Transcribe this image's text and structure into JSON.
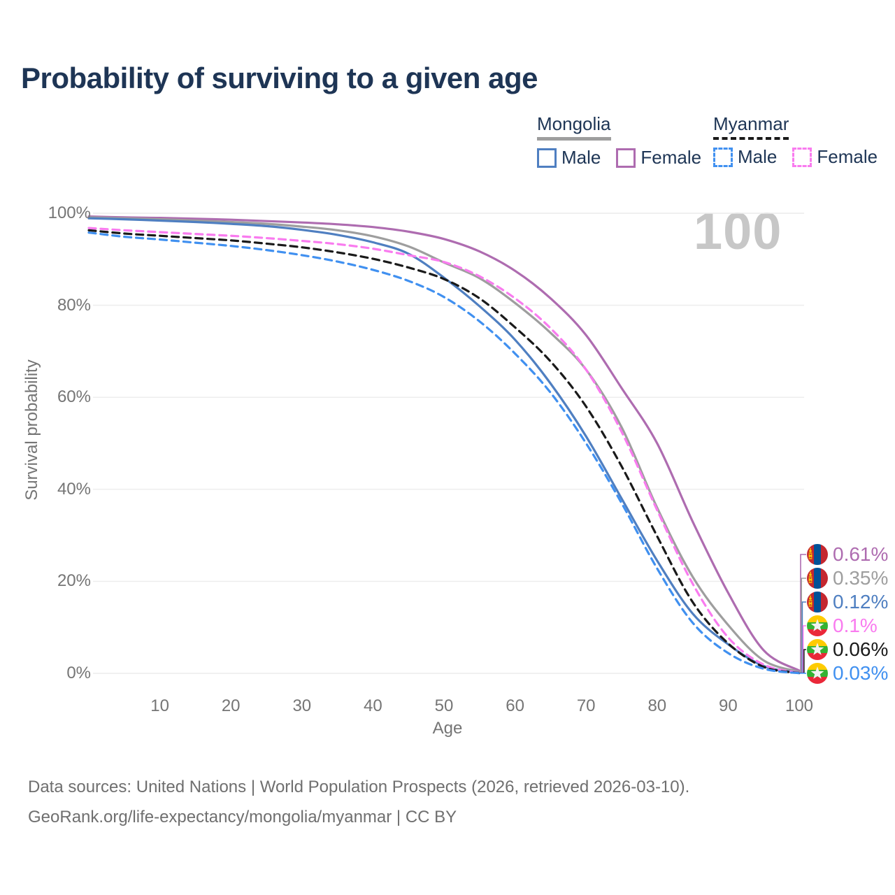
{
  "title": "Probability of surviving to a given age",
  "watermark_age": "100",
  "legend": {
    "groups": [
      {
        "label": "Mongolia",
        "line_style": "solid",
        "line_color": "#9e9e9e",
        "items": [
          {
            "label": "Male",
            "color": "#4f7fc1",
            "style": "solid"
          },
          {
            "label": "Female",
            "color": "#ae6cb0",
            "style": "solid"
          }
        ]
      },
      {
        "label": "Myanmar",
        "line_style": "dashed",
        "line_color": "#1a1a1a",
        "items": [
          {
            "label": "Male",
            "color": "#4090f0",
            "style": "dashed"
          },
          {
            "label": "Female",
            "color": "#f97bef",
            "style": "dashed"
          }
        ]
      }
    ]
  },
  "chart_data": {
    "type": "line",
    "title": "Probability of surviving to a given age",
    "x_label": "Age",
    "y_label": "Survival probability",
    "xlim": [
      0,
      100
    ],
    "ylim": [
      0,
      100
    ],
    "x_ticks": [
      10,
      20,
      30,
      40,
      50,
      60,
      70,
      80,
      90,
      100
    ],
    "y_ticks": [
      0,
      20,
      40,
      60,
      80,
      100
    ],
    "y_tick_suffix": "%",
    "grid": "horizontal",
    "legend_position": "top-right",
    "x": [
      0,
      5,
      10,
      15,
      20,
      25,
      30,
      35,
      40,
      45,
      50,
      55,
      60,
      65,
      70,
      75,
      80,
      85,
      90,
      95,
      100
    ],
    "series": [
      {
        "name": "Mongolia Female",
        "country": "Mongolia",
        "sex": "Female",
        "color": "#ae6cb0",
        "dash": false,
        "end_label": "0.61%",
        "values": [
          99.3,
          99.1,
          99.0,
          98.8,
          98.6,
          98.3,
          98.0,
          97.6,
          97.0,
          96.0,
          94.4,
          91.7,
          87.5,
          81.5,
          73.5,
          62.0,
          50.0,
          33.0,
          17.5,
          5.0,
          0.61
        ]
      },
      {
        "name": "Mongolia Both sexes",
        "country": "Mongolia",
        "sex": "Both",
        "color": "#9e9e9e",
        "dash": false,
        "end_label": "0.35%",
        "values": [
          99.1,
          98.9,
          98.7,
          98.4,
          98.1,
          97.7,
          97.1,
          96.3,
          95.0,
          92.8,
          89.3,
          85.9,
          80.5,
          74.0,
          66.0,
          53.5,
          36.0,
          21.0,
          10.5,
          2.8,
          0.35
        ]
      },
      {
        "name": "Mongolia Male",
        "country": "Mongolia",
        "sex": "Male",
        "color": "#4f7fc1",
        "dash": false,
        "end_label": "0.12%",
        "values": [
          98.9,
          98.7,
          98.4,
          98.1,
          97.7,
          97.2,
          96.4,
          95.3,
          93.7,
          91.2,
          86.0,
          79.8,
          72.5,
          63.0,
          51.5,
          38.0,
          24.5,
          13.0,
          6.3,
          1.6,
          0.12
        ]
      },
      {
        "name": "Myanmar Female",
        "country": "Myanmar",
        "sex": "Female",
        "color": "#f97bef",
        "dash": true,
        "end_label": "0.1%",
        "values": [
          96.8,
          96.3,
          95.9,
          95.5,
          95.1,
          94.6,
          94.0,
          93.3,
          92.3,
          90.9,
          89.4,
          86.3,
          81.5,
          75.0,
          66.0,
          52.5,
          35.5,
          19.5,
          7.8,
          1.9,
          0.1
        ]
      },
      {
        "name": "Myanmar Both sexes",
        "country": "Myanmar",
        "sex": "Both",
        "color": "#1a1a1a",
        "dash": true,
        "end_label": "0.06%",
        "values": [
          96.3,
          95.6,
          95.1,
          94.6,
          94.1,
          93.4,
          92.6,
          91.5,
          90.1,
          88.2,
          85.7,
          81.5,
          75.2,
          67.8,
          58.0,
          45.0,
          29.8,
          15.5,
          6.5,
          1.4,
          0.06
        ]
      },
      {
        "name": "Myanmar Male",
        "country": "Myanmar",
        "sex": "Male",
        "color": "#4090f0",
        "dash": true,
        "end_label": "0.03%",
        "values": [
          95.8,
          94.9,
          94.3,
          93.6,
          92.9,
          92.0,
          90.9,
          89.5,
          87.7,
          85.3,
          81.8,
          76.5,
          69.5,
          61.0,
          50.0,
          37.0,
          22.8,
          11.0,
          4.4,
          1.0,
          0.03
        ]
      }
    ]
  },
  "end_labels": [
    {
      "value": "0.61%",
      "flag": "mongolia"
    },
    {
      "value": "0.35%",
      "flag": "mongolia"
    },
    {
      "value": "0.12%",
      "flag": "mongolia"
    },
    {
      "value": "0.1%",
      "flag": "myanmar"
    },
    {
      "value": "0.06%",
      "flag": "myanmar"
    },
    {
      "value": "0.03%",
      "flag": "myanmar"
    }
  ],
  "footer": {
    "line1": "Data sources: United Nations | World Population Prospects (2026, retrieved 2026-03-10).",
    "line2": "GeoRank.org/life-expectancy/mongolia/myanmar | CC BY"
  },
  "colors": {
    "title_text": "#1e3555",
    "legend_text": "#1e3555",
    "axis_text": "#757575",
    "gridline": "#ececec",
    "watermark": "#c7c7c7",
    "footer_text": "#6f6f6f"
  }
}
